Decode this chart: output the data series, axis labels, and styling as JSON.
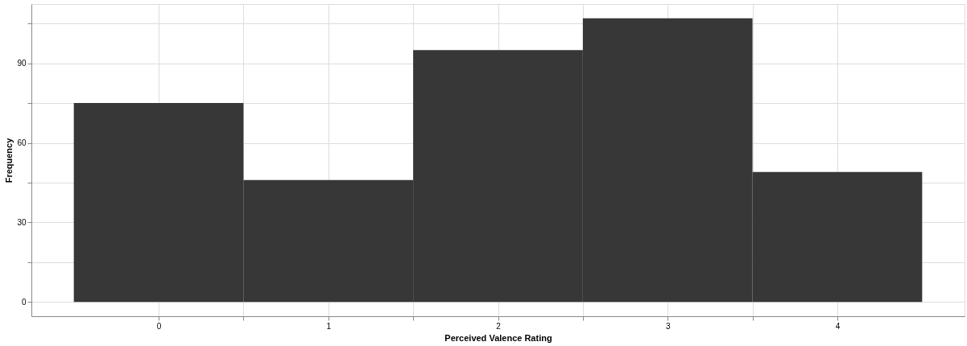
{
  "chart_data": {
    "type": "histogram",
    "xlabel": "Perceived Valence Rating",
    "ylabel": "Frequency",
    "bins": [
      -0.5,
      0.5,
      1.5,
      2.5,
      3.5,
      4.5
    ],
    "values": [
      75,
      46,
      95,
      107,
      49
    ],
    "color": "#333333",
    "xlim": [
      -0.75,
      4.75
    ],
    "ylim": [
      -5.35,
      112.35
    ],
    "xticks": [
      0,
      {
        "value": 0.5,
        "label": null
      },
      1,
      {
        "value": 1.5,
        "label": null
      },
      2,
      {
        "value": 2.5,
        "label": null
      },
      3,
      {
        "value": 3.5,
        "label": null
      },
      4
    ],
    "yticks": [
      0,
      {
        "value": 15,
        "label": null
      },
      30,
      {
        "value": 45,
        "label": null
      },
      60,
      {
        "value": 75,
        "label": null
      },
      90,
      {
        "value": 105,
        "label": null
      }
    ],
    "grid": true
  }
}
